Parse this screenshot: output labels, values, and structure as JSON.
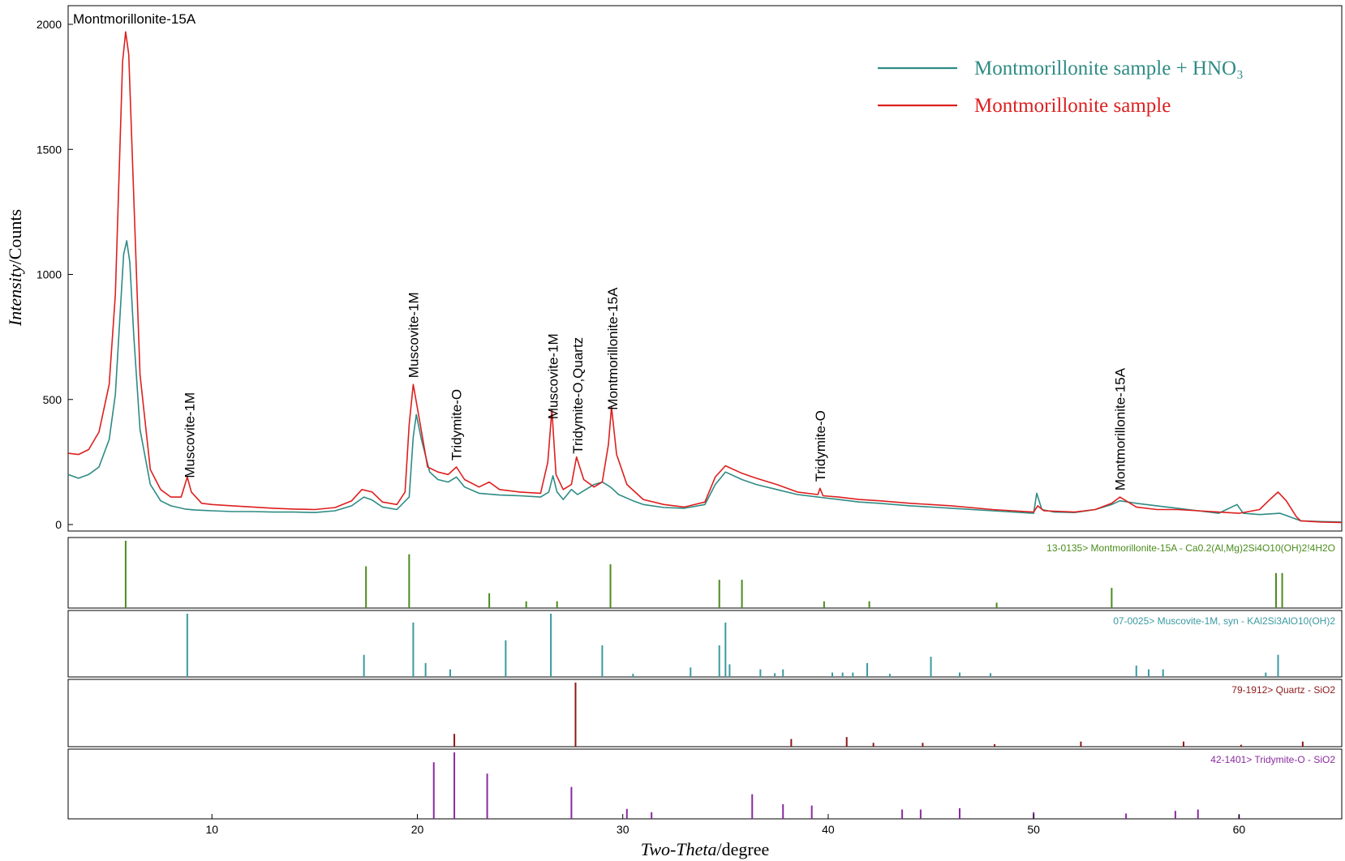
{
  "chart_data": {
    "type": "line",
    "xlabel_italic": "Two-Theta",
    "xlabel_rest": "/degree",
    "ylabel_italic": "Intensity",
    "ylabel_rest": "/Counts",
    "xlim": [
      3,
      65
    ],
    "ylim": [
      0,
      2000
    ],
    "x_ticks": [
      10,
      20,
      30,
      40,
      50,
      60
    ],
    "y_ticks": [
      0,
      500,
      1000,
      1500,
      2000
    ],
    "legend_position": "top-right",
    "series": [
      {
        "name": "Montmorillonite sample + HNO₃",
        "color": "#2e8b84",
        "points": [
          [
            3,
            200
          ],
          [
            3.5,
            185
          ],
          [
            4,
            200
          ],
          [
            4.5,
            230
          ],
          [
            5,
            340
          ],
          [
            5.3,
            520
          ],
          [
            5.5,
            800
          ],
          [
            5.7,
            1080
          ],
          [
            5.85,
            1135
          ],
          [
            6.0,
            1050
          ],
          [
            6.2,
            750
          ],
          [
            6.5,
            380
          ],
          [
            7,
            160
          ],
          [
            7.5,
            95
          ],
          [
            8,
            75
          ],
          [
            8.7,
            62
          ],
          [
            9.2,
            58
          ],
          [
            10,
            55
          ],
          [
            11,
            52
          ],
          [
            12,
            52
          ],
          [
            13,
            50
          ],
          [
            14,
            50
          ],
          [
            15,
            48
          ],
          [
            16,
            55
          ],
          [
            16.8,
            75
          ],
          [
            17.4,
            110
          ],
          [
            17.8,
            98
          ],
          [
            18.3,
            70
          ],
          [
            19,
            60
          ],
          [
            19.6,
            110
          ],
          [
            19.8,
            350
          ],
          [
            19.95,
            440
          ],
          [
            20.2,
            340
          ],
          [
            20.6,
            210
          ],
          [
            21,
            180
          ],
          [
            21.5,
            170
          ],
          [
            21.9,
            190
          ],
          [
            22.3,
            150
          ],
          [
            23,
            125
          ],
          [
            24,
            118
          ],
          [
            25,
            115
          ],
          [
            26,
            110
          ],
          [
            26.4,
            130
          ],
          [
            26.6,
            195
          ],
          [
            26.8,
            130
          ],
          [
            27.1,
            100
          ],
          [
            27.5,
            140
          ],
          [
            27.8,
            120
          ],
          [
            28.2,
            140
          ],
          [
            28.6,
            160
          ],
          [
            29,
            170
          ],
          [
            29.4,
            150
          ],
          [
            29.8,
            120
          ],
          [
            30.5,
            95
          ],
          [
            31,
            80
          ],
          [
            32,
            68
          ],
          [
            33,
            65
          ],
          [
            34,
            80
          ],
          [
            34.5,
            160
          ],
          [
            35,
            210
          ],
          [
            35.8,
            180
          ],
          [
            36.5,
            160
          ],
          [
            37.5,
            140
          ],
          [
            38.5,
            120
          ],
          [
            39.5,
            110
          ],
          [
            40.5,
            100
          ],
          [
            41.5,
            90
          ],
          [
            42.5,
            85
          ],
          [
            44,
            75
          ],
          [
            46,
            65
          ],
          [
            48,
            55
          ],
          [
            50,
            45
          ],
          [
            50.15,
            125
          ],
          [
            50.4,
            60
          ],
          [
            51,
            50
          ],
          [
            52,
            48
          ],
          [
            53,
            60
          ],
          [
            53.8,
            80
          ],
          [
            54.2,
            95
          ],
          [
            55,
            85
          ],
          [
            56,
            75
          ],
          [
            57,
            65
          ],
          [
            58,
            55
          ],
          [
            59,
            45
          ],
          [
            59.9,
            80
          ],
          [
            60.2,
            45
          ],
          [
            61,
            40
          ],
          [
            62,
            45
          ],
          [
            62.5,
            30
          ],
          [
            63,
            15
          ],
          [
            64,
            12
          ],
          [
            65,
            10
          ]
        ]
      },
      {
        "name": "Montmorillonite sample",
        "color": "#dd1f1f",
        "points": [
          [
            3,
            285
          ],
          [
            3.5,
            280
          ],
          [
            4,
            300
          ],
          [
            4.5,
            370
          ],
          [
            5,
            560
          ],
          [
            5.3,
            920
          ],
          [
            5.5,
            1450
          ],
          [
            5.65,
            1850
          ],
          [
            5.8,
            1970
          ],
          [
            5.95,
            1880
          ],
          [
            6.2,
            1300
          ],
          [
            6.5,
            600
          ],
          [
            7,
            220
          ],
          [
            7.5,
            140
          ],
          [
            8,
            110
          ],
          [
            8.5,
            110
          ],
          [
            8.8,
            190
          ],
          [
            9.0,
            130
          ],
          [
            9.5,
            85
          ],
          [
            10,
            80
          ],
          [
            11,
            75
          ],
          [
            12,
            70
          ],
          [
            13,
            65
          ],
          [
            14,
            62
          ],
          [
            15,
            60
          ],
          [
            16,
            68
          ],
          [
            16.8,
            95
          ],
          [
            17.3,
            140
          ],
          [
            17.8,
            130
          ],
          [
            18.3,
            90
          ],
          [
            19,
            80
          ],
          [
            19.4,
            130
          ],
          [
            19.6,
            400
          ],
          [
            19.8,
            560
          ],
          [
            20.1,
            420
          ],
          [
            20.5,
            230
          ],
          [
            21,
            210
          ],
          [
            21.5,
            200
          ],
          [
            21.9,
            230
          ],
          [
            22.3,
            180
          ],
          [
            23,
            150
          ],
          [
            23.5,
            170
          ],
          [
            24,
            140
          ],
          [
            25,
            130
          ],
          [
            26,
            125
          ],
          [
            26.35,
            250
          ],
          [
            26.55,
            460
          ],
          [
            26.75,
            200
          ],
          [
            27.1,
            140
          ],
          [
            27.5,
            160
          ],
          [
            27.75,
            270
          ],
          [
            28.1,
            180
          ],
          [
            28.6,
            150
          ],
          [
            29,
            170
          ],
          [
            29.3,
            320
          ],
          [
            29.45,
            470
          ],
          [
            29.7,
            280
          ],
          [
            30.2,
            160
          ],
          [
            31,
            100
          ],
          [
            32,
            80
          ],
          [
            33,
            70
          ],
          [
            34,
            90
          ],
          [
            34.5,
            190
          ],
          [
            35,
            235
          ],
          [
            35.8,
            205
          ],
          [
            36.5,
            185
          ],
          [
            37.5,
            160
          ],
          [
            38.5,
            130
          ],
          [
            39.5,
            120
          ],
          [
            39.6,
            145
          ],
          [
            39.75,
            115
          ],
          [
            40.5,
            110
          ],
          [
            41.5,
            100
          ],
          [
            42.5,
            95
          ],
          [
            44,
            85
          ],
          [
            46,
            75
          ],
          [
            48,
            60
          ],
          [
            50,
            50
          ],
          [
            50.2,
            75
          ],
          [
            50.5,
            55
          ],
          [
            52,
            50
          ],
          [
            53,
            60
          ],
          [
            53.8,
            85
          ],
          [
            54.2,
            110
          ],
          [
            55,
            70
          ],
          [
            56,
            60
          ],
          [
            57,
            60
          ],
          [
            58,
            55
          ],
          [
            59,
            50
          ],
          [
            60,
            45
          ],
          [
            61,
            60
          ],
          [
            61.5,
            100
          ],
          [
            61.9,
            130
          ],
          [
            62.3,
            95
          ],
          [
            62.8,
            30
          ],
          [
            63,
            15
          ],
          [
            64,
            10
          ],
          [
            65,
            8
          ]
        ]
      }
    ],
    "peak_labels": [
      {
        "text": "Montmorillonite-15A",
        "x": 5.8
      },
      {
        "text": "Muscovite-1M",
        "x": 8.9
      },
      {
        "text": "Muscovite-1M",
        "x": 19.8
      },
      {
        "text": "Tridymite-O",
        "x": 21.9
      },
      {
        "text": "Muscovite-1M",
        "x": 26.6
      },
      {
        "text": "Tridymite-O,Quartz",
        "x": 27.8
      },
      {
        "text": "Montmorillonite-15A",
        "x": 29.5
      },
      {
        "text": "Tridymite-O",
        "x": 39.6
      },
      {
        "text": "Montmorillonite-15A",
        "x": 54.2
      }
    ],
    "reference_patterns": [
      {
        "label": "13-0135> Montmorillonite-15A - Ca0.2(Al,Mg)2Si4O10(OH)2!4H2O",
        "color": "#4a8c1c",
        "lines": [
          [
            5.8,
            100
          ],
          [
            17.5,
            62
          ],
          [
            19.6,
            80
          ],
          [
            23.5,
            22
          ],
          [
            25.3,
            10
          ],
          [
            26.8,
            10
          ],
          [
            29.4,
            65
          ],
          [
            34.7,
            42
          ],
          [
            35.8,
            42
          ],
          [
            39.8,
            10
          ],
          [
            42,
            10
          ],
          [
            48.2,
            8
          ],
          [
            53.8,
            30
          ],
          [
            61.8,
            52
          ],
          [
            62.1,
            52
          ]
        ]
      },
      {
        "label": "07-0025> Muscovite-1M, syn - KAl2Si3AlO10(OH)2",
        "color": "#3b9aa0",
        "lines": [
          [
            8.8,
            100
          ],
          [
            17.4,
            35
          ],
          [
            19.8,
            86
          ],
          [
            20.4,
            22
          ],
          [
            21.6,
            12
          ],
          [
            24.3,
            58
          ],
          [
            26.5,
            100
          ],
          [
            29,
            50
          ],
          [
            30.5,
            5
          ],
          [
            33.3,
            15
          ],
          [
            34.7,
            50
          ],
          [
            35,
            86
          ],
          [
            35.2,
            20
          ],
          [
            36.7,
            12
          ],
          [
            37.4,
            6
          ],
          [
            37.8,
            12
          ],
          [
            40.2,
            7
          ],
          [
            40.7,
            7
          ],
          [
            41.2,
            7
          ],
          [
            41.9,
            22
          ],
          [
            43,
            5
          ],
          [
            45,
            32
          ],
          [
            46.4,
            7
          ],
          [
            47.9,
            6
          ],
          [
            55,
            18
          ],
          [
            55.6,
            12
          ],
          [
            56.3,
            12
          ],
          [
            61.3,
            7
          ],
          [
            61.9,
            35
          ]
        ]
      },
      {
        "label": "79-1912> Quartz - SiO2",
        "color": "#8b1a1a",
        "lines": [
          [
            21.8,
            20
          ],
          [
            27.7,
            100
          ],
          [
            38.2,
            12
          ],
          [
            40.9,
            15
          ],
          [
            42.2,
            6
          ],
          [
            44.6,
            6
          ],
          [
            48.1,
            4
          ],
          [
            52.3,
            8
          ],
          [
            57.3,
            8
          ],
          [
            60.1,
            3
          ],
          [
            63.1,
            8
          ]
        ]
      },
      {
        "label": "42-1401> Tridymite-O - SiO2",
        "color": "#8a2ba0",
        "lines": [
          [
            20.8,
            85
          ],
          [
            21.8,
            100
          ],
          [
            23.4,
            68
          ],
          [
            27.5,
            48
          ],
          [
            30.2,
            15
          ],
          [
            31.4,
            10
          ],
          [
            36.3,
            37
          ],
          [
            37.8,
            22
          ],
          [
            39.2,
            20
          ],
          [
            43.6,
            14
          ],
          [
            44.5,
            14
          ],
          [
            46.4,
            16
          ],
          [
            50,
            10
          ],
          [
            54.5,
            8
          ],
          [
            56.9,
            12
          ],
          [
            58,
            14
          ],
          [
            60,
            6
          ]
        ]
      }
    ]
  }
}
